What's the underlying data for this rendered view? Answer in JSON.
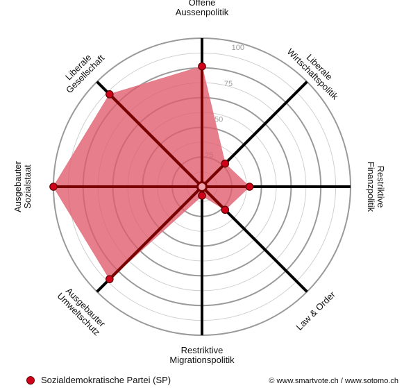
{
  "chart_data": {
    "type": "radar",
    "axes": [
      {
        "lines": [
          "Offene",
          "Aussenpolitik"
        ]
      },
      {
        "lines": [
          "Liberale",
          "Wirtschaftspolitik"
        ]
      },
      {
        "lines": [
          "Restriktive",
          "Finanzpolitik"
        ]
      },
      {
        "lines": [
          "Law & Order"
        ]
      },
      {
        "lines": [
          "Restriktive",
          "Migrationspolitik"
        ]
      },
      {
        "lines": [
          "Ausgebauter",
          "Umweltschutz"
        ]
      },
      {
        "lines": [
          "Ausgebauter",
          "Sozialstaat"
        ]
      },
      {
        "lines": [
          "Liberale",
          "Gesellschaft"
        ]
      }
    ],
    "series": [
      {
        "name": "Sozialdemokratische Partei (SP)",
        "values": [
          81,
          22,
          32,
          22,
          6,
          88,
          100,
          88
        ]
      }
    ],
    "range": [
      0,
      100
    ],
    "ticks": [
      25,
      50,
      75,
      100
    ],
    "grid": true
  },
  "legend": {
    "label": "Sozialdemokratische Partei (SP)"
  },
  "credit": "© www.smartvote.ch / www.sotomo.ch",
  "colors": {
    "fill": "#e05a6b",
    "marker": "#d0021b",
    "axis_active": "#7a0000",
    "axis": "#000000",
    "grid": "#b0b0b0"
  }
}
